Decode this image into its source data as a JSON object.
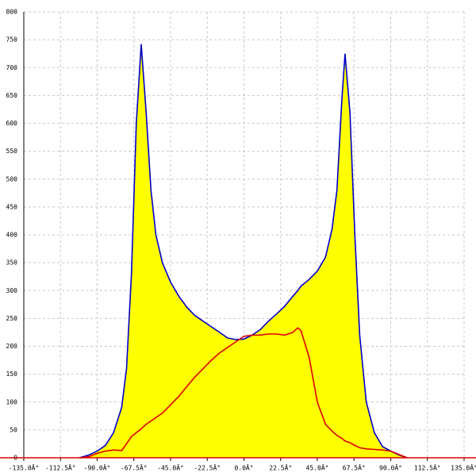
{
  "chart_data": {
    "type": "area-line",
    "x": [
      -101,
      -95,
      -90,
      -85,
      -80,
      -75,
      -72,
      -69,
      -66,
      -63,
      -60,
      -57,
      -54,
      -50,
      -45,
      -40,
      -35,
      -30,
      -25,
      -20,
      -15,
      -10,
      -5,
      0,
      5,
      10,
      15,
      20,
      25,
      30,
      33,
      35,
      40,
      45,
      50,
      54,
      57,
      60,
      62,
      65,
      68,
      71,
      75,
      80,
      85,
      90,
      95,
      100
    ],
    "series": [
      {
        "color": "#0000cc",
        "fill": "#ffff00",
        "values": [
          0,
          5,
          12,
          22,
          45,
          90,
          160,
          330,
          600,
          742,
          620,
          480,
          400,
          350,
          315,
          290,
          270,
          255,
          245,
          235,
          225,
          215,
          212,
          213,
          220,
          230,
          245,
          258,
          272,
          290,
          300,
          308,
          320,
          335,
          360,
          410,
          480,
          640,
          725,
          620,
          400,
          220,
          100,
          45,
          20,
          12,
          5,
          0
        ]
      },
      {
        "color": "#dd0000",
        "values": [
          0,
          2,
          8,
          12,
          14,
          13,
          25,
          38,
          45,
          52,
          60,
          66,
          72,
          80,
          95,
          110,
          128,
          145,
          160,
          175,
          188,
          198,
          208,
          218,
          220,
          220,
          222,
          222,
          220,
          225,
          233,
          228,
          180,
          100,
          60,
          48,
          40,
          35,
          30,
          27,
          22,
          18,
          16,
          15,
          14,
          12,
          6,
          0
        ]
      }
    ],
    "xlim": [
      -135,
      135
    ],
    "ylim": [
      0,
      800
    ],
    "xticks": [
      {
        "value": -135,
        "label": "-135.0Â°"
      },
      {
        "value": -112.5,
        "label": "-112.5Â°"
      },
      {
        "value": -90,
        "label": "-90.0Â°"
      },
      {
        "value": -67.5,
        "label": "-67.5Â°"
      },
      {
        "value": -45,
        "label": "-45.0Â°"
      },
      {
        "value": -22.5,
        "label": "-22.5Â°"
      },
      {
        "value": 0,
        "label": "0.0Â°"
      },
      {
        "value": 22.5,
        "label": "22.5Â°"
      },
      {
        "value": 45,
        "label": "45.0Â°"
      },
      {
        "value": 67.5,
        "label": "67.5Â°"
      },
      {
        "value": 90,
        "label": "90.0Â°"
      },
      {
        "value": 112.5,
        "label": "112.5Â°"
      },
      {
        "value": 135,
        "label": "135.0Â°"
      }
    ],
    "yticks": [
      0,
      50,
      100,
      150,
      200,
      250,
      300,
      350,
      400,
      450,
      500,
      550,
      600,
      650,
      700,
      750,
      800
    ],
    "grid": true,
    "axis_color": "#dd0000"
  }
}
